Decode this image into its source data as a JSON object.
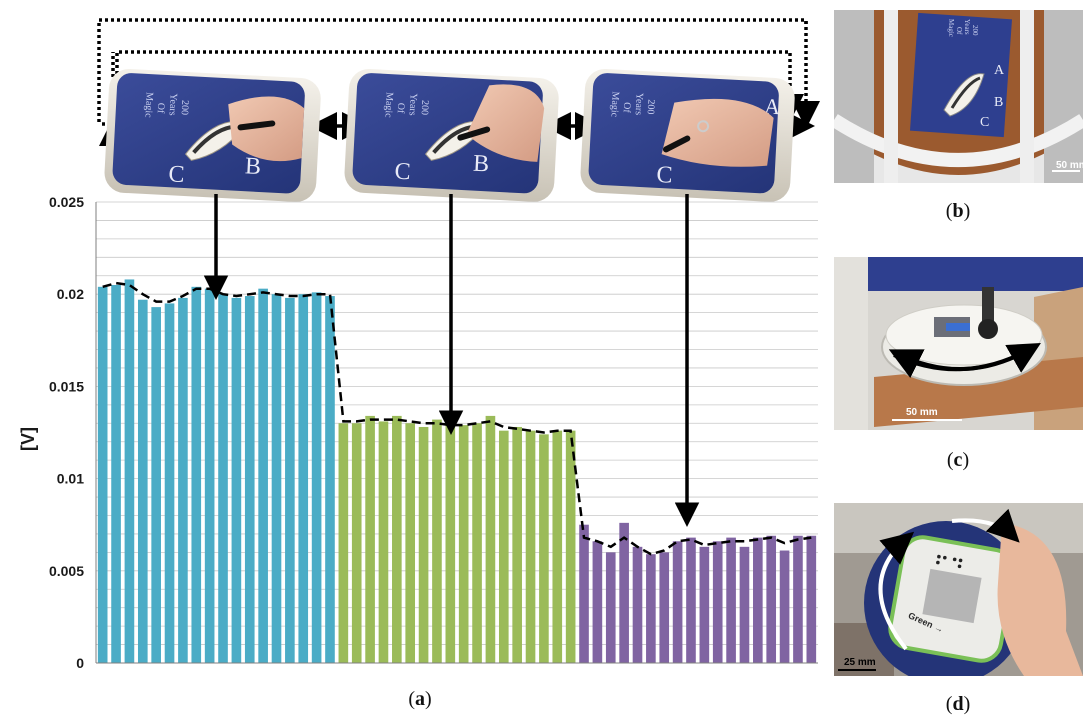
{
  "chart_data": {
    "type": "bar",
    "ylabel": "[V]",
    "ylim": [
      0,
      0.025
    ],
    "yticks": [
      "0",
      "0.005",
      "0.01",
      "0.015",
      "0.02",
      "0.025"
    ],
    "ytick_values": [
      0,
      0.005,
      0.01,
      0.015,
      0.02,
      0.025
    ],
    "grid": true,
    "series": [
      {
        "color": "#4bacc6",
        "values": [
          0.0204,
          0.0205,
          0.0208,
          0.0197,
          0.0193,
          0.0195,
          0.0198,
          0.0204,
          0.0203,
          0.02,
          0.0198,
          0.0199,
          0.0203,
          0.02,
          0.0198,
          0.02,
          0.0201,
          0.0199
        ]
      },
      {
        "color": "#9bbb59",
        "values": [
          0.013,
          0.013,
          0.0134,
          0.0131,
          0.0134,
          0.013,
          0.0128,
          0.0132,
          0.0129,
          0.0129,
          0.013,
          0.0134,
          0.0126,
          0.0128,
          0.0126,
          0.0124,
          0.0126,
          0.0126
        ]
      },
      {
        "color": "#8064a2",
        "values": [
          0.0075,
          0.0066,
          0.006,
          0.0076,
          0.0063,
          0.0059,
          0.006,
          0.0066,
          0.0068,
          0.0063,
          0.0066,
          0.0068,
          0.0063,
          0.0068,
          0.0069,
          0.0061,
          0.0069,
          0.0069
        ]
      }
    ],
    "trend_values": [
      0.0204,
      0.0206,
      0.0205,
      0.02,
      0.0196,
      0.0196,
      0.0199,
      0.0203,
      0.0203,
      0.02,
      0.0199,
      0.02,
      0.0201,
      0.02,
      0.0199,
      0.0199,
      0.02,
      0.02,
      0.0131,
      0.0131,
      0.0132,
      0.0132,
      0.0132,
      0.0131,
      0.013,
      0.013,
      0.0129,
      0.0129,
      0.013,
      0.0131,
      0.0128,
      0.0127,
      0.0126,
      0.0125,
      0.0126,
      0.0126,
      0.0068,
      0.0066,
      0.0063,
      0.0068,
      0.0063,
      0.0059,
      0.0061,
      0.0066,
      0.0067,
      0.0064,
      0.0065,
      0.0066,
      0.0066,
      0.0067,
      0.0068,
      0.0065,
      0.0067,
      0.0068
    ]
  },
  "captions": {
    "a": "a",
    "b": "b",
    "c": "c",
    "d": "d"
  },
  "board_text": {
    "line1": "200",
    "line2": "Years",
    "line3": "Of",
    "line4": "Magic",
    "letter_a": "A",
    "letter_b": "B",
    "letter_c": "C"
  },
  "photo_labels": {
    "b_scale": "50 mm",
    "c_scale": "50 mm",
    "d_scale": "25 mm",
    "d_device_text": "Green →"
  },
  "colors": {
    "blue_series": "#4bacc6",
    "green_series": "#9bbb59",
    "purple_series": "#8064a2",
    "board_blue": "#2e3f8f",
    "grid": "#bfbfbf"
  }
}
